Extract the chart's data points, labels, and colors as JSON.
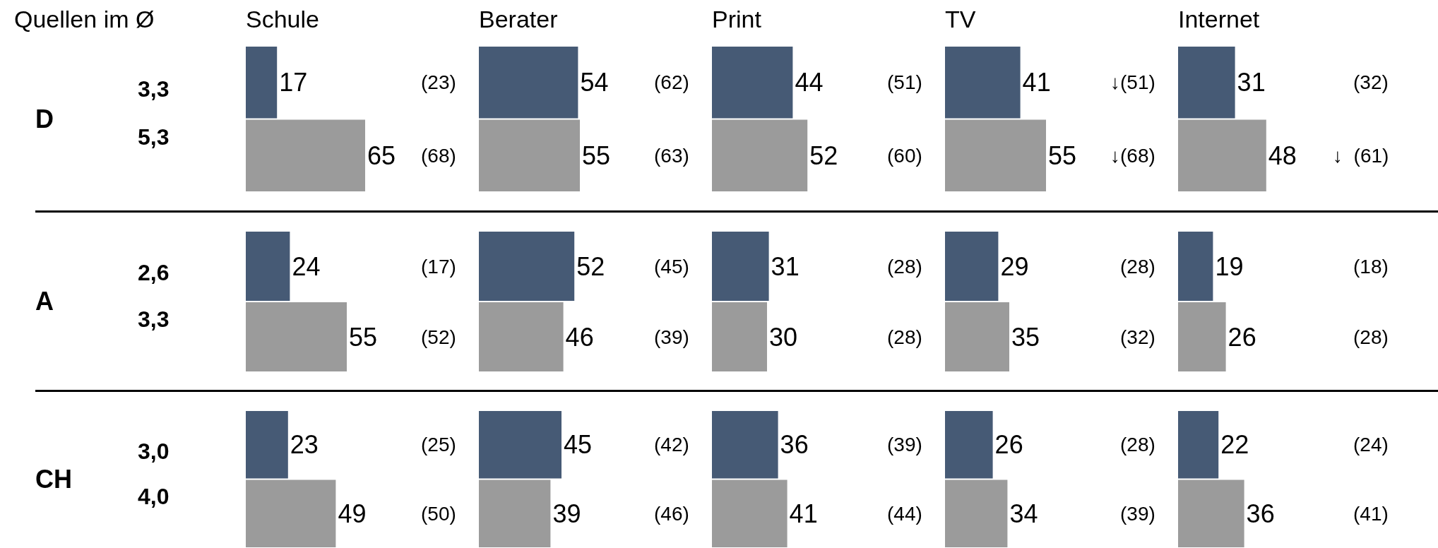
{
  "chart_data": [
    {
      "type": "other",
      "title": "Quellen im Ø"
    },
    {
      "type": "other",
      "title": "D",
      "annotations": [
        "3,3",
        "5,3"
      ]
    },
    {
      "type": "bar",
      "orientation": "horizontal",
      "title": "Schule",
      "categories": [
        null,
        null
      ],
      "values": [
        17,
        65
      ],
      "colors": [
        "#465a75",
        "#9b9b9b"
      ],
      "data_labels": true,
      "annotations": [
        "(23)",
        "(68)"
      ]
    },
    {
      "type": "bar",
      "orientation": "horizontal",
      "title": "Berater",
      "categories": [
        null,
        null
      ],
      "values": [
        54,
        55
      ],
      "colors": [
        "#465a75",
        "#9b9b9b"
      ],
      "data_labels": true,
      "annotations": [
        "(62)",
        "(63)"
      ]
    },
    {
      "type": "bar",
      "orientation": "horizontal",
      "title": "Print",
      "categories": [
        null,
        null
      ],
      "values": [
        44,
        52
      ],
      "colors": [
        "#465a75",
        "#9b9b9b"
      ],
      "data_labels": true,
      "annotations": [
        "(51)",
        "(60)"
      ]
    },
    {
      "type": "bar",
      "orientation": "horizontal",
      "title": "TV",
      "categories": [
        null,
        null
      ],
      "values": [
        41,
        55
      ],
      "colors": [
        "#465a75",
        "#9b9b9b"
      ],
      "data_labels": true,
      "annotations": [
        "↓(51)",
        "↓(68)"
      ]
    },
    {
      "type": "bar",
      "orientation": "horizontal",
      "title": "Internet",
      "categories": [
        null,
        null
      ],
      "values": [
        31,
        48
      ],
      "colors": [
        "#465a75",
        "#9b9b9b"
      ],
      "data_labels": true,
      "annotations": [
        "(32)",
        "↓  (61)"
      ]
    },
    {
      "type": "other",
      "title": "A",
      "annotations": [
        "2,6",
        "3,3"
      ]
    },
    {
      "type": "bar",
      "orientation": "horizontal",
      "categories": [
        null,
        null
      ],
      "values": [
        24,
        55
      ],
      "colors": [
        "#465a75",
        "#9b9b9b"
      ],
      "data_labels": true,
      "annotations": [
        "(17)",
        "(52)"
      ]
    },
    {
      "type": "bar",
      "orientation": "horizontal",
      "categories": [
        null,
        null
      ],
      "values": [
        52,
        46
      ],
      "colors": [
        "#465a75",
        "#9b9b9b"
      ],
      "data_labels": true,
      "annotations": [
        "(45)",
        "(39)"
      ]
    },
    {
      "type": "bar",
      "orientation": "horizontal",
      "categories": [
        null,
        null
      ],
      "values": [
        31,
        30
      ],
      "colors": [
        "#465a75",
        "#9b9b9b"
      ],
      "data_labels": true,
      "annotations": [
        "(28)",
        "(28)"
      ]
    },
    {
      "type": "bar",
      "orientation": "horizontal",
      "categories": [
        null,
        null
      ],
      "values": [
        29,
        35
      ],
      "colors": [
        "#465a75",
        "#9b9b9b"
      ],
      "data_labels": true,
      "annotations": [
        "(28)",
        "(32)"
      ]
    },
    {
      "type": "bar",
      "orientation": "horizontal",
      "categories": [
        null,
        null
      ],
      "values": [
        19,
        26
      ],
      "colors": [
        "#465a75",
        "#9b9b9b"
      ],
      "data_labels": true,
      "annotations": [
        "(18)",
        "(28)"
      ]
    },
    {
      "type": "other",
      "title": "CH",
      "annotations": [
        "3,0",
        "4,0"
      ]
    },
    {
      "type": "bar",
      "orientation": "horizontal",
      "categories": [
        null,
        null
      ],
      "values": [
        23,
        49
      ],
      "colors": [
        "#465a75",
        "#9b9b9b"
      ],
      "data_labels": true,
      "annotations": [
        "(25)",
        "(50)"
      ]
    },
    {
      "type": "bar",
      "orientation": "horizontal",
      "categories": [
        null,
        null
      ],
      "values": [
        45,
        39
      ],
      "colors": [
        "#465a75",
        "#9b9b9b"
      ],
      "data_labels": true,
      "annotations": [
        "(42)",
        "(46)"
      ]
    },
    {
      "type": "bar",
      "orientation": "horizontal",
      "categories": [
        null,
        null
      ],
      "values": [
        36,
        41
      ],
      "colors": [
        "#465a75",
        "#9b9b9b"
      ],
      "data_labels": true,
      "annotations": [
        "(39)",
        "(44)"
      ]
    },
    {
      "type": "bar",
      "orientation": "horizontal",
      "categories": [
        null,
        null
      ],
      "values": [
        26,
        34
      ],
      "colors": [
        "#465a75",
        "#9b9b9b"
      ],
      "data_labels": true,
      "annotations": [
        "(28)",
        "(39)"
      ]
    },
    {
      "type": "bar",
      "orientation": "horizontal",
      "categories": [
        null,
        null
      ],
      "values": [
        22,
        36
      ],
      "colors": [
        "#465a75",
        "#9b9b9b"
      ],
      "data_labels": true,
      "annotations": [
        "(24)",
        "(41)"
      ]
    }
  ]
}
